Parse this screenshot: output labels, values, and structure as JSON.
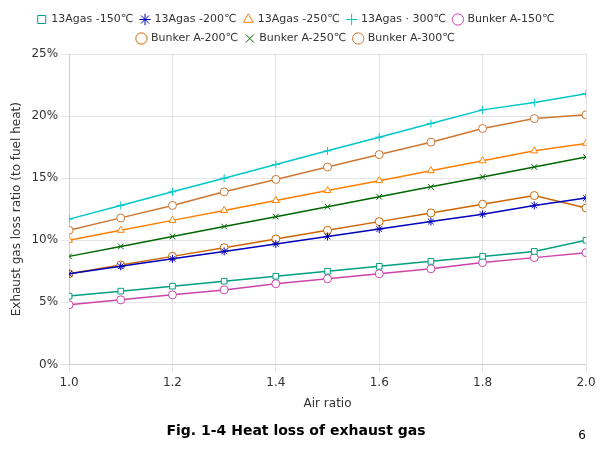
{
  "chart_data": {
    "type": "line",
    "title": "Fig. 1-4 Heat loss of exhaust gas",
    "x_label": "Air ratio",
    "y_label": "Exhaust gas loss ratio (to fuel heat)",
    "annotations": [
      "6"
    ],
    "xlim": [
      1.0,
      2.0
    ],
    "ylim": [
      0.0,
      0.25
    ],
    "xticks": [
      {
        "value": 1.0,
        "label": "1.0"
      },
      1.2,
      1.4,
      1.6,
      1.8,
      {
        "value": 2.0,
        "label": "2.0"
      }
    ],
    "yticks": [
      {
        "value": 0.0,
        "label": "0%"
      },
      {
        "value": 0.05,
        "label": "5%"
      },
      {
        "value": 0.1,
        "label": "10%"
      },
      {
        "value": 0.15,
        "label": "15%"
      },
      {
        "value": 0.2,
        "label": "20%"
      },
      {
        "value": 0.25,
        "label": "25%"
      }
    ],
    "grid": true,
    "legend": "top",
    "x": [
      1.0,
      1.1,
      1.2,
      1.3,
      1.4,
      1.5,
      1.6,
      1.7,
      1.8,
      1.9,
      2.0
    ],
    "series": [
      {
        "name": "13Agas -150℃",
        "color": "#00A080",
        "marker": "square",
        "values": [
          0.055,
          0.059,
          0.063,
          0.067,
          0.071,
          0.075,
          0.079,
          0.083,
          0.087,
          0.091,
          0.1
        ]
      },
      {
        "name": "13Agas -200℃",
        "color": "#0000BB",
        "marker": "star",
        "values": [
          0.073,
          0.079,
          0.085,
          0.091,
          0.097,
          0.103,
          0.109,
          0.115,
          0.121,
          0.128,
          0.134
        ]
      },
      {
        "name": "13Agas -250℃",
        "color": "#FF8000",
        "marker": "triangle",
        "values": [
          0.1,
          0.108,
          0.116,
          0.124,
          0.132,
          0.14,
          0.148,
          0.156,
          0.164,
          0.172,
          0.178
        ]
      },
      {
        "name": "13Agas · 300℃",
        "color": "#00C8C8",
        "marker": "plus",
        "values": [
          0.117,
          0.128,
          0.139,
          0.15,
          0.161,
          0.172,
          0.183,
          0.194,
          0.205,
          0.211,
          0.218
        ]
      },
      {
        "name": "Bunker A-150℃",
        "color": "#CC44AA",
        "marker": "circle",
        "values": [
          0.048,
          0.052,
          0.056,
          0.06,
          0.065,
          0.069,
          0.073,
          0.077,
          0.082,
          0.086,
          0.09
        ]
      },
      {
        "name": "Bunker A-200℃",
        "color": "#CC6600",
        "marker": "circle",
        "values": [
          0.073,
          0.08,
          0.087,
          0.094,
          0.101,
          0.108,
          0.115,
          0.122,
          0.129,
          0.136,
          0.126
        ]
      },
      {
        "name": "Bunker A-250℃",
        "color": "#006600",
        "marker": "x",
        "values": [
          0.087,
          0.095,
          0.103,
          0.111,
          0.119,
          0.127,
          0.135,
          0.143,
          0.151,
          0.159,
          0.167
        ]
      },
      {
        "name": "Bunker A-300℃",
        "color": "#CC7733",
        "marker": "circle",
        "values": [
          0.108,
          0.118,
          0.128,
          0.139,
          0.149,
          0.159,
          0.169,
          0.179,
          0.19,
          0.198,
          0.201
        ]
      }
    ]
  }
}
